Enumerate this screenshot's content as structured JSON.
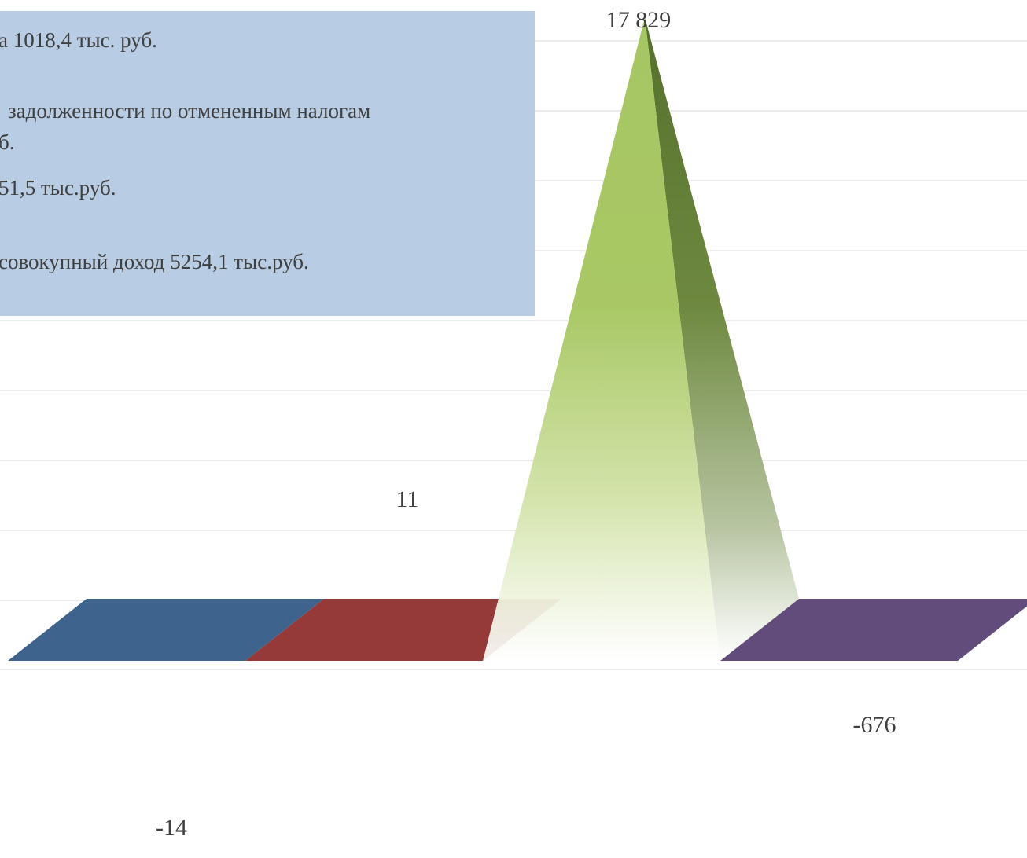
{
  "chart_data": {
    "type": "bar",
    "style": "3d-pyramid",
    "categories": [
      "",
      "",
      "",
      ""
    ],
    "values": [
      -14,
      11,
      17829,
      -676
    ],
    "data_labels": [
      "-14",
      "11",
      "17 829",
      "-676"
    ],
    "colors": [
      "#3e638d",
      "#953939",
      "#a6c663",
      "#624c7c"
    ],
    "grid": true,
    "legend": "none"
  },
  "annotation": {
    "lines": [
      "а 1018,4 тыс. руб.",
      "задолженности по отмененным налогам",
      "б.",
      "51,5 тыс.руб.",
      "совокупный доход 5254,1 тыс.руб."
    ]
  }
}
